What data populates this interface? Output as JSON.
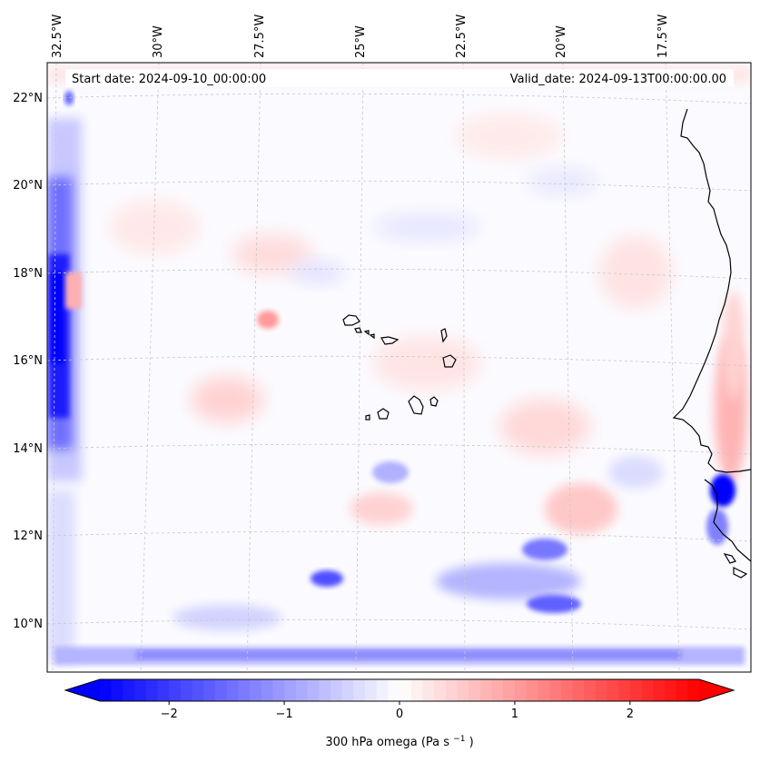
{
  "map": {
    "start_date_label": "Start date: 2024-09-10_00:00:00",
    "valid_date_label": "Valid_date: 2024-09-13T00:00:00.00",
    "variable": "300 hPa omega",
    "unit_text": "(Pa s",
    "unit_exp": "−1",
    "unit_close": ")",
    "lon_labels": [
      "32.5°W",
      "30°W",
      "27.5°W",
      "25°W",
      "22.5°W",
      "20°W",
      "17.5°W"
    ],
    "lat_labels": [
      "22°N",
      "20°N",
      "18°N",
      "16°N",
      "14°N",
      "12°N",
      "10°N"
    ],
    "extent": {
      "lon_min": -32.6,
      "lon_max": -15.6,
      "lat_min": 8.9,
      "lat_max": 22.7
    },
    "colormap": "bwr",
    "colors": {
      "negative": "#0000ff",
      "zero": "#ffffff",
      "positive": "#ff0000",
      "coastline": "#000000",
      "grid": "#c8c8c8"
    }
  },
  "colorbar": {
    "min": -2.6,
    "max": 2.6,
    "extend": "both",
    "ticks": [
      -2,
      -1,
      0,
      1,
      2
    ],
    "tick_labels": [
      "−2",
      "−1",
      "0",
      "1",
      "2"
    ]
  }
}
